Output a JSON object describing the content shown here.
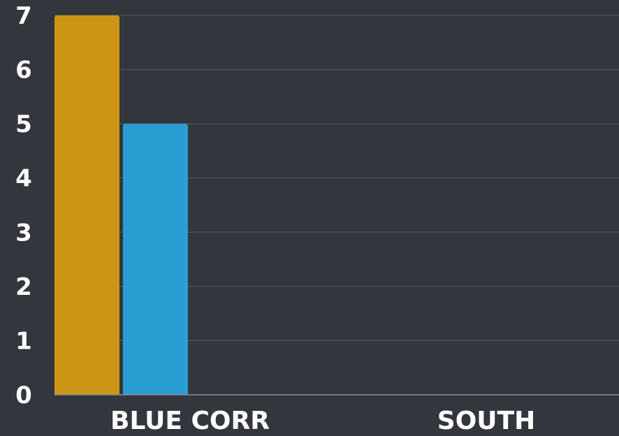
{
  "chart_data": {
    "type": "bar",
    "categories": [
      "BLUE CORR",
      "SOUTH"
    ],
    "series": [
      {
        "values": [
          7,
          0
        ],
        "color": "#cc9516"
      },
      {
        "values": [
          5,
          0
        ],
        "color": "#289ed3"
      }
    ],
    "y_ticks": [
      "0",
      "1",
      "2",
      "3",
      "4",
      "5",
      "6",
      "7"
    ],
    "ylim": [
      0,
      7
    ],
    "grid": true,
    "legend": "none",
    "background_color": "#33363d",
    "text_color": "#ffffff"
  }
}
